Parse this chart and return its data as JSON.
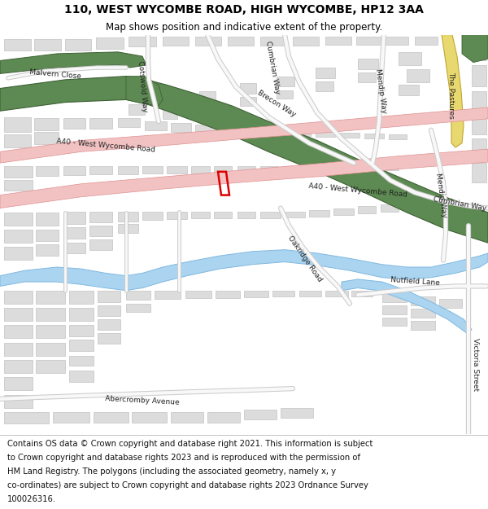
{
  "title": "110, WEST WYCOMBE ROAD, HIGH WYCOMBE, HP12 3AA",
  "subtitle": "Map shows position and indicative extent of the property.",
  "footer_lines": [
    "Contains OS data © Crown copyright and database right 2021. This information is subject",
    "to Crown copyright and database rights 2023 and is reproduced with the permission of",
    "HM Land Registry. The polygons (including the associated geometry, namely x, y",
    "co-ordinates) are subject to Crown copyright and database rights 2023 Ordnance Survey",
    "100026316."
  ],
  "map_bg": "#f0eeea",
  "building_color": "#dcdcdc",
  "building_edge": "#b8b8b8",
  "road_pink": "#f2c2c2",
  "road_pink_edge": "#e09090",
  "green_color": "#5d8a52",
  "green_edge": "#3d6035",
  "water_color": "#aad4f0",
  "water_edge": "#80b8e0",
  "yellow_color": "#e8d870",
  "yellow_edge": "#c0a830",
  "red_plot": "#dd0000",
  "road_white": "#f8f8f8",
  "road_gray_edge": "#cccccc",
  "title_fontsize": 10,
  "subtitle_fontsize": 8.5,
  "footer_fontsize": 7.2,
  "label_fontsize": 6.8
}
